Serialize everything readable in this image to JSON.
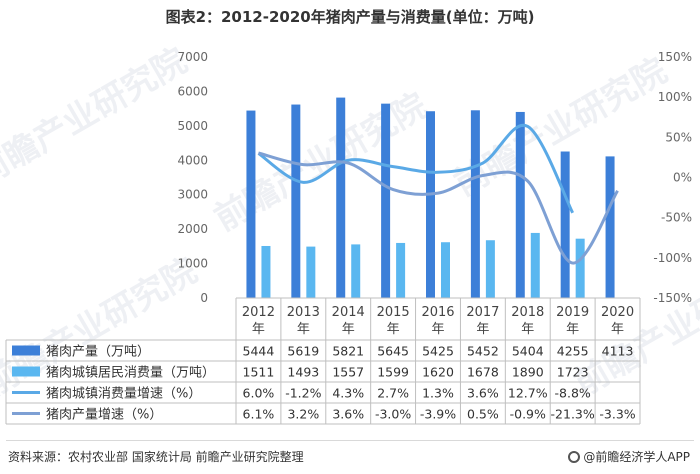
{
  "title": "图表2：2012-2020年猪肉产量与消费量(单位：万吨)",
  "source": "资料来源：农村农业部 国家统计局 前瞻产业研究院整理",
  "brand": "@前瞻经济学人APP",
  "watermark": "前瞻产业研究院",
  "colors": {
    "production_bar": "#3c7fd8",
    "consumption_bar": "#5ab7f0",
    "consumption_growth_line": "#5aa9e6",
    "production_growth_line": "#7ea0d4"
  },
  "chart_data": {
    "type": "bar",
    "categories": [
      "2012\n年",
      "2013\n年",
      "2014\n年",
      "2015\n年",
      "2016\n年",
      "2017\n年",
      "2018\n年",
      "2019\n年",
      "2020\n年"
    ],
    "left_axis": {
      "ylim": [
        0,
        7000
      ],
      "ticks": [
        "0",
        "1000",
        "2000",
        "3000",
        "4000",
        "5000",
        "6000",
        "7000"
      ]
    },
    "right_axis": {
      "ylim": [
        -150,
        150
      ],
      "ticks": [
        "-150%",
        "-100%",
        "-50%",
        "0%",
        "50%",
        "100%",
        "150%"
      ]
    },
    "grid": false,
    "legend": "table-left",
    "series": [
      {
        "name": "猪肉产量（万吨）",
        "type": "bar",
        "axis": "left",
        "values": [
          5444,
          5619,
          5821,
          5645,
          5425,
          5452,
          5404,
          4255,
          4113
        ],
        "labels": [
          "5444",
          "5619",
          "5821",
          "5645",
          "5425",
          "5452",
          "5404",
          "4255",
          "4113"
        ]
      },
      {
        "name": "猪肉城镇居民消费量（万吨）",
        "type": "bar",
        "axis": "left",
        "values": [
          1511,
          1493,
          1557,
          1599,
          1620,
          1678,
          1890,
          1723,
          null
        ],
        "labels": [
          "1511",
          "1493",
          "1557",
          "1599",
          "1620",
          "1678",
          "1890",
          "1723",
          ""
        ]
      },
      {
        "name": "猪肉城镇消费量增速（%）",
        "type": "line",
        "axis": "right",
        "values": [
          6.0,
          -1.2,
          4.3,
          2.7,
          1.3,
          3.6,
          12.7,
          -8.8,
          null
        ],
        "labels": [
          "6.0%",
          "-1.2%",
          "4.3%",
          "2.7%",
          "1.3%",
          "3.6%",
          "12.7%",
          "-8.8%",
          ""
        ]
      },
      {
        "name": "猪肉产量增速（%）",
        "type": "line",
        "axis": "right",
        "values": [
          6.1,
          3.2,
          3.6,
          -3.0,
          -3.9,
          0.5,
          -0.9,
          -21.3,
          -3.3
        ],
        "labels": [
          "6.1%",
          "3.2%",
          "3.6%",
          "-3.0%",
          "-3.9%",
          "0.5%",
          "-0.9%",
          "-21.3%",
          "-3.3%"
        ]
      }
    ]
  }
}
